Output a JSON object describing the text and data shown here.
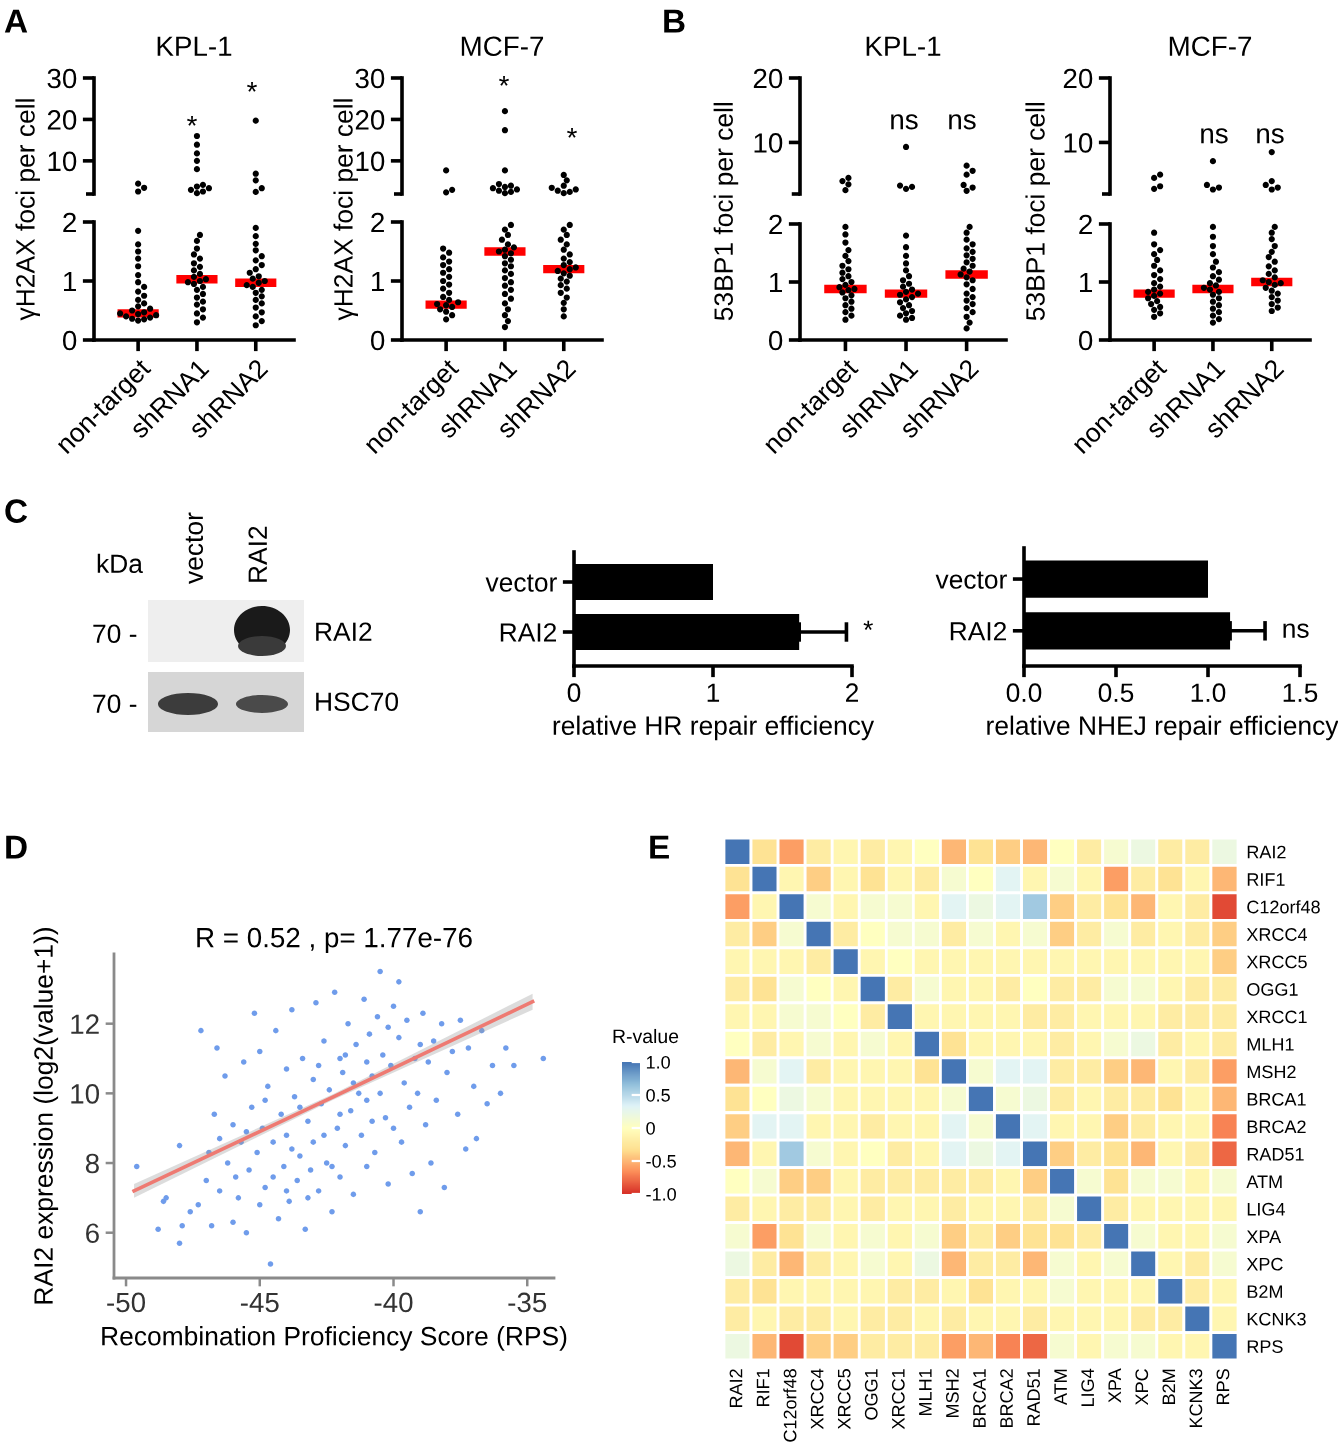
{
  "chart_data": [
    {
      "type": "scatter",
      "title": "KPL-1",
      "categories": [
        "non-target",
        "shRNA1",
        "shRNA2"
      ],
      "tick_labels": "y",
      "ylim": [
        2,
        30
      ],
      "yticks": [
        10,
        20,
        30
      ],
      "marker": "circle",
      "series": [
        {
          "color": "#000000",
          "x": [
            "non-target",
            "non-target",
            "non-target"
          ],
          "values": [
            2.6,
            3.5,
            4.5
          ]
        },
        {
          "color": "#000000",
          "x": [
            "shRNA1",
            "shRNA1",
            "shRNA1",
            "shRNA1",
            "shRNA1",
            "shRNA1",
            "shRNA1",
            "shRNA1",
            "shRNA1",
            "shRNA1",
            "shRNA1"
          ],
          "values": [
            2.2,
            2.6,
            3.0,
            3.4,
            3.8,
            4.2,
            8.0,
            10.0,
            11.8,
            13.9,
            16.0
          ]
        },
        {
          "color": "#000000",
          "x": [
            "shRNA2",
            "shRNA2",
            "shRNA2",
            "shRNA2",
            "shRNA2"
          ],
          "values": [
            2.5,
            3.4,
            5.3,
            6.9,
            19.7
          ]
        }
      ],
      "annotations": [
        "A",
        "*",
        "*"
      ]
    },
    {
      "type": "scatter",
      "ylabel": "γH2AX foci per cell",
      "categories": [
        "non-target",
        "shRNA1",
        "shRNA2"
      ],
      "ylim": [
        0,
        2
      ],
      "yticks": [
        0,
        1,
        2
      ],
      "marker": "circle",
      "series": [
        {
          "color": "#000000",
          "x": [
            "non-target",
            "non-target",
            "non-target",
            "non-target",
            "non-target",
            "non-target",
            "non-target",
            "non-target",
            "non-target",
            "non-target",
            "non-target",
            "non-target",
            "non-target",
            "non-target",
            "non-target",
            "non-target",
            "non-target",
            "non-target",
            "non-target",
            "non-target",
            "non-target",
            "non-target",
            "non-target",
            "non-target"
          ],
          "values": [
            0.33,
            0.35,
            0.36,
            0.38,
            0.4,
            0.42,
            0.44,
            0.45,
            0.47,
            0.5,
            0.53,
            0.57,
            0.62,
            0.68,
            0.75,
            0.82,
            0.9,
            0.98,
            1.1,
            1.25,
            1.38,
            1.5,
            1.62,
            1.85
          ]
        },
        {
          "color": "#000000",
          "x": [
            "shRNA1",
            "shRNA1",
            "shRNA1",
            "shRNA1",
            "shRNA1",
            "shRNA1",
            "shRNA1",
            "shRNA1",
            "shRNA1",
            "shRNA1",
            "shRNA1",
            "shRNA1",
            "shRNA1",
            "shRNA1",
            "shRNA1",
            "shRNA1",
            "shRNA1",
            "shRNA1",
            "shRNA1",
            "shRNA1",
            "shRNA1",
            "shRNA1",
            "shRNA1",
            "shRNA1"
          ],
          "values": [
            0.3,
            0.38,
            0.45,
            0.52,
            0.6,
            0.65,
            0.72,
            0.78,
            0.85,
            0.9,
            0.95,
            0.98,
            1.0,
            1.03,
            1.07,
            1.12,
            1.18,
            1.24,
            1.3,
            1.38,
            1.45,
            1.55,
            1.68,
            1.78
          ]
        },
        {
          "color": "#000000",
          "x": [
            "shRNA2",
            "shRNA2",
            "shRNA2",
            "shRNA2",
            "shRNA2",
            "shRNA2",
            "shRNA2",
            "shRNA2",
            "shRNA2",
            "shRNA2",
            "shRNA2",
            "shRNA2",
            "shRNA2",
            "shRNA2",
            "shRNA2",
            "shRNA2",
            "shRNA2",
            "shRNA2",
            "shRNA2",
            "shRNA2",
            "shRNA2",
            "shRNA2",
            "shRNA2",
            "shRNA2",
            "shRNA2"
          ],
          "values": [
            0.25,
            0.32,
            0.4,
            0.47,
            0.55,
            0.62,
            0.68,
            0.74,
            0.8,
            0.85,
            0.9,
            0.93,
            0.97,
            1.0,
            1.04,
            1.08,
            1.14,
            1.2,
            1.27,
            1.35,
            1.42,
            1.52,
            1.63,
            1.76,
            1.9
          ]
        }
      ],
      "ref_lines": [
        {
          "axis": "y",
          "value": 0.45,
          "color": "#ff0000"
        },
        {
          "axis": "y",
          "value": 1.03,
          "color": "#ff0000"
        },
        {
          "axis": "y",
          "value": 0.97,
          "color": "#ff0000"
        }
      ]
    },
    {
      "type": "scatter",
      "title": "MCF-7",
      "categories": [
        "non-target",
        "shRNA1",
        "shRNA2"
      ],
      "tick_labels": "y",
      "ylim": [
        2,
        30
      ],
      "yticks": [
        10,
        20,
        30
      ],
      "marker": "circle",
      "series": [
        {
          "color": "#000000",
          "x": [
            "non-target",
            "non-target",
            "non-target"
          ],
          "values": [
            2.4,
            3.0,
            7.7
          ]
        },
        {
          "color": "#000000",
          "x": [
            "shRNA1",
            "shRNA1",
            "shRNA1",
            "shRNA1",
            "shRNA1",
            "shRNA1",
            "shRNA1",
            "shRNA1",
            "shRNA1",
            "shRNA1",
            "shRNA1"
          ],
          "values": [
            2.2,
            2.5,
            2.8,
            3.1,
            3.4,
            3.7,
            4.0,
            4.4,
            7.7,
            17.4,
            22.0
          ]
        },
        {
          "color": "#000000",
          "x": [
            "shRNA2",
            "shRNA2",
            "shRNA2",
            "shRNA2",
            "shRNA2",
            "shRNA2",
            "shRNA2",
            "shRNA2"
          ],
          "values": [
            2.2,
            2.5,
            2.8,
            3.1,
            3.5,
            4.0,
            5.3,
            6.6
          ]
        }
      ],
      "annotations": [
        "*",
        "*"
      ]
    },
    {
      "type": "scatter",
      "ylabel": "γH2AX foci per cell",
      "categories": [
        "non-target",
        "shRNA1",
        "shRNA2"
      ],
      "ylim": [
        0,
        2
      ],
      "yticks": [
        0,
        1,
        2
      ],
      "marker": "circle",
      "series": [
        {
          "color": "#000000",
          "x": [
            "non-target",
            "non-target",
            "non-target",
            "non-target",
            "non-target",
            "non-target",
            "non-target",
            "non-target",
            "non-target",
            "non-target",
            "non-target",
            "non-target",
            "non-target",
            "non-target",
            "non-target",
            "non-target",
            "non-target",
            "non-target",
            "non-target",
            "non-target",
            "non-target",
            "non-target"
          ],
          "values": [
            0.35,
            0.42,
            0.48,
            0.52,
            0.56,
            0.59,
            0.61,
            0.64,
            0.68,
            0.73,
            0.8,
            0.87,
            0.94,
            1.0,
            1.07,
            1.14,
            1.2,
            1.27,
            1.33,
            1.4,
            1.48,
            1.55
          ]
        },
        {
          "color": "#000000",
          "x": [
            "shRNA1",
            "shRNA1",
            "shRNA1",
            "shRNA1",
            "shRNA1",
            "shRNA1",
            "shRNA1",
            "shRNA1",
            "shRNA1",
            "shRNA1",
            "shRNA1",
            "shRNA1",
            "shRNA1",
            "shRNA1",
            "shRNA1",
            "shRNA1",
            "shRNA1",
            "shRNA1",
            "shRNA1",
            "shRNA1",
            "shRNA1",
            "shRNA1",
            "shRNA1",
            "shRNA1",
            "shRNA1",
            "shRNA1"
          ],
          "values": [
            0.22,
            0.32,
            0.42,
            0.52,
            0.62,
            0.7,
            0.78,
            0.85,
            0.92,
            0.98,
            1.05,
            1.12,
            1.18,
            1.25,
            1.3,
            1.36,
            1.42,
            1.47,
            1.5,
            1.53,
            1.57,
            1.62,
            1.7,
            1.78,
            1.87,
            1.95
          ]
        },
        {
          "color": "#000000",
          "x": [
            "shRNA2",
            "shRNA2",
            "shRNA2",
            "shRNA2",
            "shRNA2",
            "shRNA2",
            "shRNA2",
            "shRNA2",
            "shRNA2",
            "shRNA2",
            "shRNA2",
            "shRNA2",
            "shRNA2",
            "shRNA2",
            "shRNA2",
            "shRNA2",
            "shRNA2",
            "shRNA2",
            "shRNA2",
            "shRNA2",
            "shRNA2",
            "shRNA2",
            "shRNA2",
            "shRNA2"
          ],
          "values": [
            0.4,
            0.52,
            0.63,
            0.72,
            0.8,
            0.87,
            0.93,
            0.99,
            1.04,
            1.09,
            1.13,
            1.17,
            1.2,
            1.23,
            1.27,
            1.32,
            1.38,
            1.45,
            1.53,
            1.62,
            1.7,
            1.78,
            1.87,
            1.95
          ]
        }
      ],
      "ref_lines": [
        {
          "axis": "y",
          "value": 0.6,
          "color": "#ff0000"
        },
        {
          "axis": "y",
          "value": 1.5,
          "color": "#ff0000"
        },
        {
          "axis": "y",
          "value": 1.2,
          "color": "#ff0000"
        }
      ]
    },
    {
      "type": "scatter",
      "title": "KPL-1",
      "categories": [
        "non-target",
        "shRNA1",
        "shRNA2"
      ],
      "tick_labels": "y",
      "ylim": [
        2,
        20
      ],
      "yticks": [
        10,
        20
      ],
      "marker": "circle",
      "series": [
        {
          "color": "#000000",
          "x": [
            "non-target",
            "non-target",
            "non-target",
            "non-target"
          ],
          "values": [
            2.6,
            3.5,
            4.0,
            4.5
          ]
        },
        {
          "color": "#000000",
          "x": [
            "shRNA1",
            "shRNA1",
            "shRNA1",
            "shRNA1"
          ],
          "values": [
            2.8,
            3.1,
            3.3,
            9.3
          ]
        },
        {
          "color": "#000000",
          "x": [
            "shRNA2",
            "shRNA2",
            "shRNA2",
            "shRNA2",
            "shRNA2",
            "shRNA2"
          ],
          "values": [
            2.5,
            3.0,
            3.4,
            5.0,
            5.6,
            6.4
          ]
        }
      ],
      "annotations": [
        "B",
        "ns",
        "ns"
      ]
    },
    {
      "type": "scatter",
      "ylabel": "53BP1 foci per cell",
      "categories": [
        "non-target",
        "shRNA1",
        "shRNA2"
      ],
      "ylim": [
        0,
        2
      ],
      "yticks": [
        0,
        1,
        2
      ],
      "marker": "circle",
      "series": [
        {
          "color": "#000000",
          "x": [
            "non-target",
            "non-target",
            "non-target",
            "non-target",
            "non-target",
            "non-target",
            "non-target",
            "non-target",
            "non-target",
            "non-target",
            "non-target",
            "non-target",
            "non-target",
            "non-target",
            "non-target",
            "non-target",
            "non-target",
            "non-target",
            "non-target",
            "non-target",
            "non-target",
            "non-target",
            "non-target",
            "non-target",
            "non-target"
          ],
          "values": [
            0.35,
            0.42,
            0.48,
            0.54,
            0.6,
            0.66,
            0.72,
            0.77,
            0.82,
            0.86,
            0.88,
            0.91,
            0.95,
            1.0,
            1.05,
            1.1,
            1.16,
            1.22,
            1.28,
            1.36,
            1.45,
            1.55,
            1.68,
            1.82,
            1.95
          ]
        },
        {
          "color": "#000000",
          "x": [
            "shRNA1",
            "shRNA1",
            "shRNA1",
            "shRNA1",
            "shRNA1",
            "shRNA1",
            "shRNA1",
            "shRNA1",
            "shRNA1",
            "shRNA1",
            "shRNA1",
            "shRNA1",
            "shRNA1",
            "shRNA1",
            "shRNA1",
            "shRNA1",
            "shRNA1",
            "shRNA1",
            "shRNA1",
            "shRNA1",
            "shRNA1",
            "shRNA1",
            "shRNA1"
          ],
          "values": [
            0.35,
            0.38,
            0.42,
            0.46,
            0.5,
            0.55,
            0.6,
            0.65,
            0.7,
            0.74,
            0.78,
            0.8,
            0.83,
            0.87,
            0.92,
            0.97,
            1.03,
            1.1,
            1.2,
            1.32,
            1.45,
            1.6,
            1.8
          ]
        },
        {
          "color": "#000000",
          "x": [
            "shRNA2",
            "shRNA2",
            "shRNA2",
            "shRNA2",
            "shRNA2",
            "shRNA2",
            "shRNA2",
            "shRNA2",
            "shRNA2",
            "shRNA2",
            "shRNA2",
            "shRNA2",
            "shRNA2",
            "shRNA2",
            "shRNA2",
            "shRNA2",
            "shRNA2",
            "shRNA2",
            "shRNA2",
            "shRNA2",
            "shRNA2",
            "shRNA2",
            "shRNA2",
            "shRNA2",
            "shRNA2",
            "shRNA2"
          ],
          "values": [
            0.2,
            0.3,
            0.4,
            0.48,
            0.55,
            0.62,
            0.68,
            0.74,
            0.8,
            0.88,
            0.96,
            1.03,
            1.08,
            1.13,
            1.18,
            1.23,
            1.28,
            1.34,
            1.4,
            1.46,
            1.52,
            1.58,
            1.65,
            1.73,
            1.85,
            1.95
          ]
        }
      ],
      "ref_lines": [
        {
          "axis": "y",
          "value": 0.88,
          "color": "#ff0000"
        },
        {
          "axis": "y",
          "value": 0.8,
          "color": "#ff0000"
        },
        {
          "axis": "y",
          "value": 1.13,
          "color": "#ff0000"
        }
      ]
    },
    {
      "type": "scatter",
      "title": "MCF-7",
      "categories": [
        "non-target",
        "shRNA1",
        "shRNA2"
      ],
      "tick_labels": "y",
      "ylim": [
        2,
        20
      ],
      "yticks": [
        10,
        20
      ],
      "marker": "circle",
      "series": [
        {
          "color": "#000000",
          "x": [
            "non-target",
            "non-target",
            "non-target",
            "non-target"
          ],
          "values": [
            2.8,
            3.2,
            4.5,
            5.0
          ]
        },
        {
          "color": "#000000",
          "x": [
            "shRNA1",
            "shRNA1",
            "shRNA1",
            "shRNA1"
          ],
          "values": [
            2.7,
            3.0,
            3.4,
            7.1
          ]
        },
        {
          "color": "#000000",
          "x": [
            "shRNA2",
            "shRNA2",
            "shRNA2",
            "shRNA2",
            "shRNA2"
          ],
          "values": [
            2.7,
            3.0,
            3.4,
            4.0,
            8.5
          ]
        }
      ],
      "annotations": [
        "ns",
        "ns"
      ]
    },
    {
      "type": "scatter",
      "ylabel": "53BP1 foci per cell",
      "categories": [
        "non-target",
        "shRNA1",
        "shRNA2"
      ],
      "ylim": [
        0,
        2
      ],
      "yticks": [
        0,
        1,
        2
      ],
      "marker": "circle",
      "series": [
        {
          "color": "#000000",
          "x": [
            "non-target",
            "non-target",
            "non-target",
            "non-target",
            "non-target",
            "non-target",
            "non-target",
            "non-target",
            "non-target",
            "non-target",
            "non-target",
            "non-target",
            "non-target",
            "non-target",
            "non-target",
            "non-target",
            "non-target",
            "non-target",
            "non-target",
            "non-target",
            "non-target",
            "non-target"
          ],
          "values": [
            0.4,
            0.46,
            0.52,
            0.57,
            0.62,
            0.67,
            0.72,
            0.76,
            0.8,
            0.83,
            0.87,
            0.92,
            0.98,
            1.05,
            1.12,
            1.2,
            1.28,
            1.38,
            1.48,
            1.55,
            1.65,
            1.85
          ]
        },
        {
          "color": "#000000",
          "x": [
            "shRNA1",
            "shRNA1",
            "shRNA1",
            "shRNA1",
            "shRNA1",
            "shRNA1",
            "shRNA1",
            "shRNA1",
            "shRNA1",
            "shRNA1",
            "shRNA1",
            "shRNA1",
            "shRNA1",
            "shRNA1",
            "shRNA1",
            "shRNA1",
            "shRNA1",
            "shRNA1",
            "shRNA1",
            "shRNA1",
            "shRNA1",
            "shRNA1",
            "shRNA1"
          ],
          "values": [
            0.3,
            0.36,
            0.42,
            0.48,
            0.54,
            0.6,
            0.66,
            0.72,
            0.78,
            0.83,
            0.87,
            0.9,
            0.94,
            0.98,
            1.04,
            1.1,
            1.17,
            1.25,
            1.35,
            1.48,
            1.62,
            1.78,
            1.95
          ]
        },
        {
          "color": "#000000",
          "x": [
            "shRNA2",
            "shRNA2",
            "shRNA2",
            "shRNA2",
            "shRNA2",
            "shRNA2",
            "shRNA2",
            "shRNA2",
            "shRNA2",
            "shRNA2",
            "shRNA2",
            "shRNA2",
            "shRNA2",
            "shRNA2",
            "shRNA2",
            "shRNA2",
            "shRNA2",
            "shRNA2",
            "shRNA2",
            "shRNA2",
            "shRNA2",
            "shRNA2",
            "shRNA2"
          ],
          "values": [
            0.5,
            0.56,
            0.62,
            0.68,
            0.74,
            0.8,
            0.85,
            0.9,
            0.95,
            0.98,
            1.0,
            1.03,
            1.08,
            1.14,
            1.2,
            1.27,
            1.35,
            1.43,
            1.52,
            1.62,
            1.74,
            1.85,
            1.95
          ]
        }
      ],
      "ref_lines": [
        {
          "axis": "y",
          "value": 0.8,
          "color": "#ff0000"
        },
        {
          "axis": "y",
          "value": 0.88,
          "color": "#ff0000"
        },
        {
          "axis": "y",
          "value": 1.0,
          "color": "#ff0000"
        }
      ]
    },
    {
      "type": "other",
      "annotations": [
        "C",
        "kDa",
        "vector",
        "RAI2",
        "70 -",
        "70 -",
        "RAI2",
        "HSC70"
      ]
    },
    {
      "type": "bar",
      "orientation": "horizontal",
      "categories": [
        "vector",
        "RAI2"
      ],
      "values": [
        1.0,
        1.62
      ],
      "color": "#000000",
      "errors": [
        null,
        [
          1.62,
          1.96
        ]
      ],
      "xlim": [
        0,
        2
      ],
      "xticks": [
        0,
        1,
        2
      ],
      "xlabel": "relative HR repair efficiency",
      "annotations": [
        {
          "text": "*",
          "x": 1.96,
          "y": "RAI2"
        }
      ]
    },
    {
      "type": "bar",
      "orientation": "horizontal",
      "categories": [
        "vector",
        "RAI2"
      ],
      "values": [
        1.0,
        1.12
      ],
      "color": "#000000",
      "errors": [
        null,
        [
          1.12,
          1.31
        ]
      ],
      "xlim": [
        0,
        1.5
      ],
      "xticks": [
        {
          "value": 0,
          "label": "0.0"
        },
        {
          "value": 0.5,
          "label": "0.5"
        },
        {
          "value": 1,
          "label": "1.0"
        },
        {
          "value": 1.5,
          "label": "1.5"
        }
      ],
      "xlabel": "relative NHEJ repair efficiency",
      "annotations": [
        {
          "text": "ns",
          "x": 1.31,
          "y": "RAI2"
        }
      ]
    },
    {
      "type": "scatter",
      "xlabel": "Recombination Proficiency Score (RPS)",
      "ylabel": "RAI2 expression (log2(value+1))",
      "xlim": [
        -50.45,
        -34.0
      ],
      "xticks": [
        -50,
        -45,
        -40,
        -35
      ],
      "ylim": [
        4.7,
        14.0
      ],
      "yticks": [
        6,
        8,
        10,
        12
      ],
      "marker": "circle",
      "series": [
        {
          "color": "#6f9ceb",
          "x": [
            -49.6,
            -48.8,
            -48.6,
            -48.5,
            -48.0,
            -47.9,
            -48.0,
            -47.6,
            -47.3,
            -47.2,
            -47.0,
            -46.9,
            -46.8,
            -46.7,
            -46.6,
            -46.5,
            -46.3,
            -46.2,
            -46.0,
            -46.0,
            -45.8,
            -45.7,
            -45.6,
            -45.5,
            -45.4,
            -45.3,
            -45.2,
            -45.1,
            -45.0,
            -45.0,
            -44.9,
            -44.8,
            -44.7,
            -44.6,
            -44.5,
            -44.4,
            -44.3,
            -44.2,
            -44.1,
            -44.0,
            -44.0,
            -43.9,
            -43.8,
            -43.7,
            -43.6,
            -43.5,
            -43.4,
            -43.3,
            -43.2,
            -43.1,
            -43.0,
            -43.0,
            -42.9,
            -42.8,
            -42.7,
            -42.6,
            -42.5,
            -42.4,
            -42.3,
            -42.2,
            -42.1,
            -42.0,
            -42.0,
            -41.9,
            -41.8,
            -41.7,
            -41.6,
            -41.5,
            -41.4,
            -41.3,
            -41.2,
            -41.1,
            -41.0,
            -41.0,
            -40.9,
            -40.8,
            -40.7,
            -40.6,
            -40.5,
            -40.4,
            -40.3,
            -40.2,
            -40.1,
            -40.0,
            -40.0,
            -39.8,
            -39.8,
            -39.7,
            -39.6,
            -39.5,
            -39.4,
            -39.3,
            -39.2,
            -39.1,
            -39.0,
            -38.9,
            -38.8,
            -38.7,
            -38.6,
            -38.5,
            -38.4,
            -38.2,
            -38.1,
            -38.0,
            -37.8,
            -37.6,
            -37.5,
            -37.3,
            -37.2,
            -37.0,
            -36.9,
            -36.7,
            -36.5,
            -36.3,
            -36.0,
            -35.8,
            -35.5,
            -34.4,
            -44.5,
            -43.8,
            -43.2,
            -42.6,
            -42.0,
            -41.5,
            -41.0,
            -40.5,
            -44.8,
            -45.5,
            -43.5,
            -42.8,
            -41.8,
            -40.2,
            -39.0,
            -46.5,
            -45.9,
            -44.0,
            -42.3,
            -40.8
          ],
          "values": [
            7.9,
            6.1,
            6.9,
            7.0,
            5.7,
            6.2,
            8.5,
            6.6,
            6.8,
            11.8,
            7.5,
            8.3,
            6.2,
            9.4,
            11.3,
            7.2,
            10.5,
            8.0,
            6.3,
            9.1,
            7.0,
            8.6,
            10.9,
            6.0,
            7.8,
            9.6,
            12.3,
            8.3,
            11.2,
            6.8,
            9.0,
            7.3,
            10.2,
            5.1,
            8.6,
            11.8,
            6.4,
            9.4,
            7.9,
            10.7,
            8.8,
            6.9,
            12.4,
            9.9,
            7.5,
            8.2,
            11.0,
            6.1,
            9.2,
            7.8,
            10.4,
            8.6,
            12.6,
            7.2,
            9.7,
            11.5,
            8.0,
            10.1,
            6.6,
            12.9,
            9.0,
            11.0,
            7.6,
            10.6,
            8.5,
            12.0,
            9.5,
            7.1,
            11.4,
            10.0,
            8.8,
            12.7,
            9.8,
            7.9,
            11.7,
            10.5,
            8.3,
            12.2,
            13.5,
            11.1,
            9.3,
            7.4,
            10.8,
            12.5,
            9.0,
            13.2,
            11.6,
            8.6,
            10.3,
            12.1,
            9.6,
            7.7,
            11.0,
            10.0,
            6.6,
            12.3,
            9.1,
            10.9,
            8.0,
            11.5,
            9.8,
            12.0,
            7.3,
            10.6,
            11.2,
            9.4,
            12.1,
            8.4,
            11.3,
            10.2,
            8.7,
            11.8,
            9.7,
            10.8,
            10.0,
            11.3,
            10.8,
            11.0,
            7.6,
            8.4,
            7.0,
            8.8,
            9.4,
            10.3,
            10.9,
            10.0,
            9.8,
            8.9,
            9.6,
            10.8,
            11.1,
            11.9,
            11.4,
            8.7,
            7.6,
            7.2,
            7.9,
            9.2
          ]
        },
        {
          "type": "line",
          "marker": "none",
          "color": "#ee7a72",
          "x": [
            -49.7,
            -42.25,
            -34.8
          ],
          "values": [
            7.2,
            9.9,
            12.63
          ],
          "lower": [
            7.0,
            9.82,
            12.4
          ],
          "upper": [
            7.4,
            9.98,
            12.86
          ]
        }
      ],
      "annotations": [
        "D",
        "R = 0.52 , p= 1.77e-76"
      ]
    },
    {
      "type": "heatmap",
      "categories": [
        "RAI2",
        "RIF1",
        "C12orf48",
        "XRCC4",
        "XRCC5",
        "OGG1",
        "XRCC1",
        "MLH1",
        "MSH2",
        "BRCA1",
        "BRCA2",
        "RAD51",
        "ATM",
        "LIG4",
        "XPA",
        "XPC",
        "B2M",
        "KCNK3",
        "RPS"
      ],
      "y_categories": [
        "RAI2",
        "RIF1",
        "C12orf48",
        "XRCC4",
        "XRCC5",
        "OGG1",
        "XRCC1",
        "MLH1",
        "MSH2",
        "BRCA1",
        "BRCA2",
        "RAD51",
        "ATM",
        "LIG4",
        "XPA",
        "XPC",
        "B2M",
        "KCNK3",
        "RPS"
      ],
      "cells": [
        [
          1,
          -0.3,
          -0.6,
          -0.2,
          -0.1,
          -0.2,
          -0.1,
          0.0,
          -0.5,
          -0.3,
          -0.4,
          -0.5,
          0.0,
          -0.2,
          0.1,
          0.2,
          -0.2,
          -0.2,
          0.2
        ],
        [
          -0.3,
          1,
          -0.1,
          -0.4,
          -0.1,
          -0.3,
          -0.1,
          -0.2,
          0.1,
          0.0,
          0.3,
          -0.1,
          0.1,
          -0.1,
          -0.6,
          -0.2,
          -0.3,
          -0.1,
          -0.5
        ],
        [
          -0.6,
          -0.1,
          1,
          0.1,
          -0.1,
          0.1,
          0.1,
          -0.1,
          0.3,
          0.2,
          0.3,
          0.6,
          -0.4,
          -0.2,
          -0.3,
          -0.5,
          -0.1,
          -0.2,
          -0.9
        ],
        [
          -0.2,
          -0.4,
          0.1,
          1,
          -0.2,
          0.0,
          0.1,
          0.1,
          -0.2,
          0.1,
          -0.1,
          0.1,
          -0.4,
          -0.2,
          0.1,
          -0.2,
          -0.1,
          -0.2,
          -0.4
        ],
        [
          -0.1,
          -0.1,
          -0.1,
          -0.2,
          1,
          -0.1,
          0.0,
          -0.1,
          -0.1,
          -0.1,
          -0.1,
          -0.1,
          -0.1,
          -0.1,
          -0.1,
          -0.1,
          -0.1,
          -0.1,
          -0.4
        ],
        [
          -0.2,
          -0.3,
          0.1,
          0.0,
          -0.1,
          1,
          -0.2,
          0.1,
          -0.1,
          -0.1,
          -0.2,
          0.0,
          -0.2,
          -0.2,
          0.1,
          0.1,
          -0.1,
          -0.2,
          -0.2
        ],
        [
          -0.1,
          -0.1,
          0.1,
          0.1,
          0.0,
          -0.2,
          1,
          -0.1,
          -0.1,
          -0.1,
          -0.1,
          -0.2,
          -0.2,
          -0.1,
          -0.1,
          -0.1,
          -0.2,
          -0.2,
          -0.2
        ],
        [
          0.0,
          -0.2,
          -0.1,
          0.1,
          -0.1,
          0.1,
          -0.1,
          1,
          -0.3,
          -0.1,
          -0.1,
          -0.1,
          -0.2,
          -0.1,
          0.1,
          0.2,
          -0.2,
          -0.1,
          -0.2
        ],
        [
          -0.5,
          0.1,
          0.3,
          -0.2,
          -0.1,
          -0.1,
          -0.1,
          -0.3,
          1,
          0.1,
          0.3,
          0.3,
          -0.2,
          -0.2,
          -0.4,
          -0.5,
          -0.1,
          -0.2,
          -0.6
        ],
        [
          -0.3,
          0.0,
          0.2,
          0.1,
          -0.1,
          -0.1,
          -0.1,
          -0.1,
          0.1,
          1,
          0.1,
          0.2,
          -0.2,
          -0.1,
          -0.2,
          -0.2,
          -0.3,
          -0.1,
          -0.5
        ],
        [
          -0.4,
          0.3,
          0.3,
          -0.1,
          -0.1,
          -0.2,
          -0.1,
          -0.1,
          0.3,
          0.1,
          1,
          0.3,
          -0.1,
          -0.1,
          -0.4,
          -0.2,
          -0.1,
          -0.1,
          -0.7
        ],
        [
          -0.5,
          -0.1,
          0.6,
          0.1,
          -0.1,
          0.0,
          -0.2,
          -0.1,
          0.3,
          0.2,
          0.3,
          1,
          -0.4,
          -0.2,
          -0.3,
          -0.5,
          -0.1,
          -0.2,
          -0.8
        ],
        [
          0.0,
          0.1,
          -0.4,
          -0.4,
          -0.1,
          -0.2,
          -0.2,
          -0.2,
          -0.2,
          -0.2,
          -0.1,
          -0.4,
          1,
          0.1,
          -0.3,
          0.1,
          0.1,
          -0.1,
          0.1
        ],
        [
          -0.2,
          -0.1,
          -0.2,
          -0.2,
          -0.1,
          -0.2,
          -0.1,
          -0.1,
          -0.2,
          -0.1,
          -0.1,
          -0.2,
          0.1,
          1,
          -0.2,
          -0.1,
          -0.1,
          -0.1,
          -0.1
        ],
        [
          0.1,
          -0.6,
          -0.3,
          0.1,
          -0.1,
          0.1,
          -0.1,
          0.1,
          -0.4,
          -0.2,
          -0.4,
          -0.3,
          -0.3,
          -0.2,
          1,
          0.1,
          -0.1,
          -0.1,
          0.1
        ],
        [
          0.2,
          -0.2,
          -0.5,
          -0.2,
          -0.1,
          0.1,
          -0.1,
          0.2,
          -0.5,
          -0.2,
          -0.2,
          -0.5,
          0.1,
          -0.1,
          0.1,
          1,
          -0.1,
          -0.2,
          0.1
        ],
        [
          -0.2,
          -0.3,
          -0.1,
          -0.1,
          -0.1,
          -0.1,
          -0.2,
          -0.2,
          -0.1,
          -0.3,
          -0.1,
          -0.1,
          0.1,
          -0.1,
          -0.1,
          -0.1,
          1,
          -0.2,
          -0.1
        ],
        [
          -0.2,
          -0.1,
          -0.2,
          -0.2,
          -0.1,
          -0.2,
          -0.2,
          -0.1,
          -0.2,
          -0.1,
          -0.1,
          -0.2,
          -0.1,
          -0.1,
          -0.1,
          -0.2,
          -0.2,
          1,
          -0.1
        ],
        [
          0.2,
          -0.5,
          -0.9,
          -0.4,
          -0.4,
          -0.2,
          -0.2,
          -0.2,
          -0.6,
          -0.5,
          -0.7,
          -0.8,
          0.1,
          -0.1,
          0.1,
          0.1,
          -0.1,
          -0.1,
          1
        ]
      ],
      "clim": [
        -1,
        1
      ],
      "cticks": [
        {
          "value": 1,
          "label": "1.0"
        },
        {
          "value": 0.5,
          "label": "0.5"
        },
        0,
        {
          "value": -0.5,
          "label": "-0.5"
        },
        {
          "value": -1,
          "label": "-1.0"
        }
      ],
      "clabel": "R-value",
      "annotations": [
        "E"
      ]
    }
  ]
}
